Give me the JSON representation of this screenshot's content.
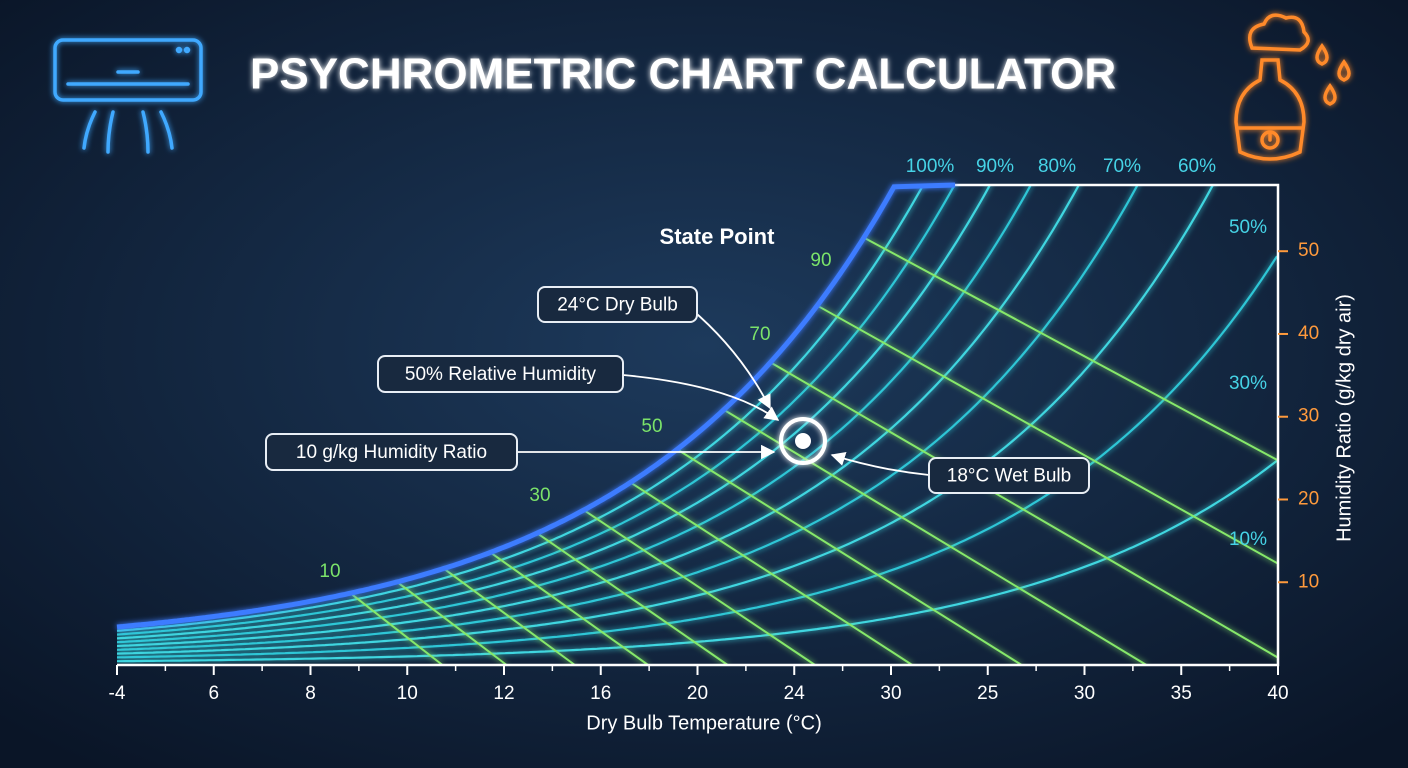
{
  "chart_data": {
    "type": "psychrometric",
    "title": "PSYCHROMETRIC CHART CALCULATOR",
    "xlabel": "Dry Bulb Temperature (°C)",
    "ylabel": "Humidity Ratio (g/kg dry air)",
    "categories": [
      -4,
      6,
      8,
      10,
      12,
      16,
      20,
      24,
      30,
      25,
      30,
      35,
      40
    ],
    "ylim": [
      0,
      58
    ],
    "yticks": [
      10,
      20,
      30,
      40,
      50
    ],
    "rh_labels": [
      "100%",
      "90%",
      "80%",
      "70%",
      "60%",
      "50%",
      "30%",
      "10%"
    ],
    "wet_bulb_labels": [
      10,
      30,
      50,
      70,
      90
    ],
    "state_point": {
      "label": "State Point",
      "annotations": [
        "24°C Dry Bulb",
        "50% Relative Humidity",
        "10 g/kg Humidity Ratio",
        "18°C Wet Bulb"
      ]
    }
  }
}
